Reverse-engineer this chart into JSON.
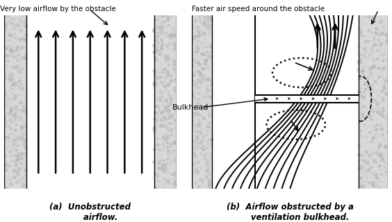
{
  "fig_width": 5.64,
  "fig_height": 3.2,
  "dpi": 100,
  "bg_color": "#ffffff",
  "wall_color": "#d8d8d8",
  "annotation_left": "Very low airflow by the obstacle",
  "annotation_right": "Faster air speed around the obstacle",
  "bulkhead_label": "Bulkhead",
  "caption_left": "(a)  Unobstructed\n       airflow.",
  "caption_right": "(b)  Airflow obstructed by a\n       ventilation bulkhead."
}
